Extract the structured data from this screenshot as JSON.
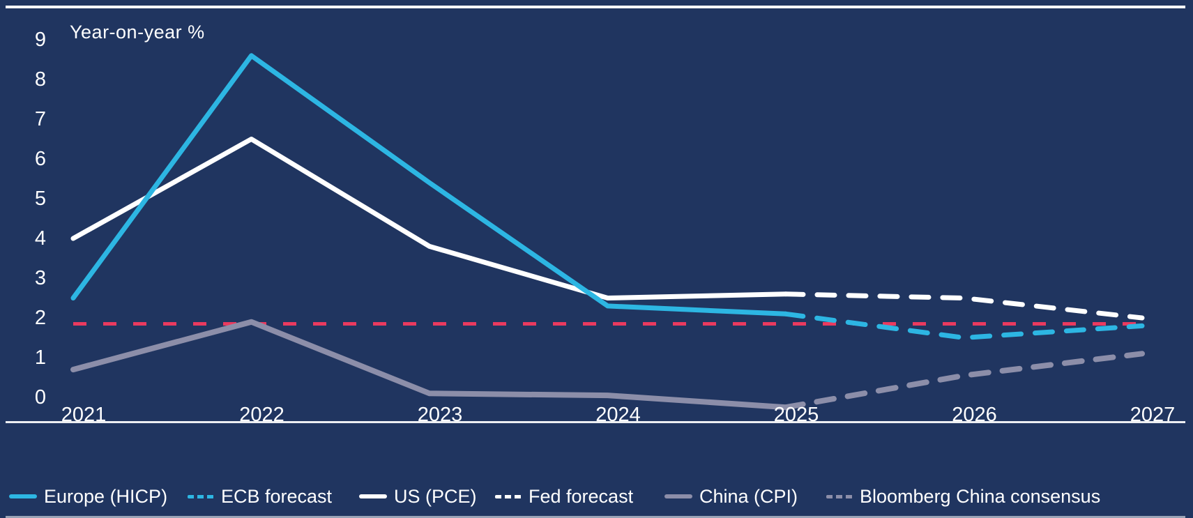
{
  "chart_data": {
    "type": "line",
    "title": "",
    "ylabel": "Year-on-year %",
    "xlabel": "",
    "years": [
      2021,
      2022,
      2023,
      2024,
      2025,
      2026,
      2027
    ],
    "x_tick_labels": [
      "2021",
      "2022",
      "2023",
      "2024",
      "2025",
      "2026",
      "2027"
    ],
    "y_ticks": [
      0,
      1,
      2,
      3,
      4,
      5,
      6,
      7,
      8,
      9
    ],
    "ylim": [
      -0.65,
      9.85
    ],
    "grid": false,
    "legend_position": "bottom",
    "background_color": "#203560",
    "reference_line": {
      "value": 1.85,
      "color": "#EA3A5F",
      "style": "dashed",
      "note": "unlabelled red dashed horizontal line (inflation target, approx 2%)"
    },
    "series": [
      {
        "id": "europe-hicp",
        "name": "Europe (HICP)",
        "color": "#2DB6E3",
        "style": "solid",
        "start_year": 2021,
        "values": [
          2.5,
          8.6,
          5.4,
          2.3,
          2.1
        ]
      },
      {
        "id": "ecb-forecast",
        "name": "ECB forecast",
        "color": "#2DB6E3",
        "style": "dashed",
        "start_year": 2025,
        "values": [
          2.1,
          1.5,
          1.8
        ]
      },
      {
        "id": "us-pce",
        "name": "US (PCE)",
        "color": "#FFFFFF",
        "style": "solid",
        "start_year": 2021,
        "values": [
          4.0,
          6.5,
          3.8,
          2.5,
          2.6
        ]
      },
      {
        "id": "fed-forecast",
        "name": "Fed forecast",
        "color": "#FFFFFF",
        "style": "dashed",
        "start_year": 2025,
        "values": [
          2.6,
          2.5,
          2.0
        ]
      },
      {
        "id": "china-cpi",
        "name": "China (CPI)",
        "color": "#8C8EA9",
        "style": "solid",
        "start_year": 2021,
        "values": [
          0.7,
          1.9,
          0.1,
          0.05,
          -0.25
        ]
      },
      {
        "id": "bloomberg-china-consensus",
        "name": "Bloomberg China consensus",
        "color": "#8C8EA9",
        "style": "dashed",
        "start_year": 2025,
        "values": [
          -0.25,
          0.55,
          1.1
        ]
      }
    ]
  }
}
